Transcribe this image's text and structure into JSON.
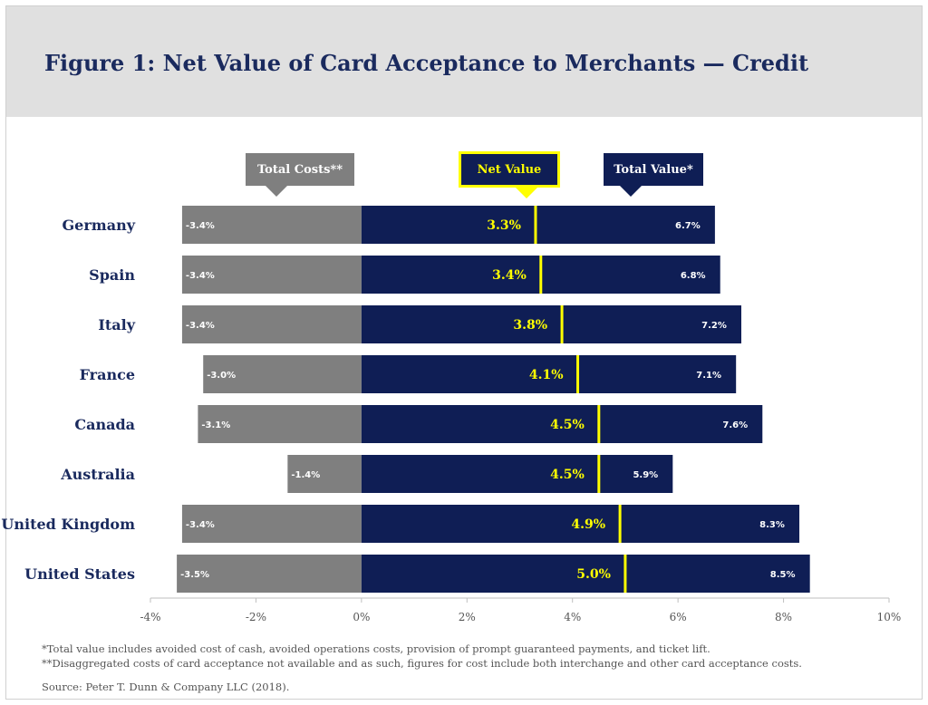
{
  "header": {
    "title": "Figure 1: Net Value of Card Acceptance to Merchants — Credit"
  },
  "legend": {
    "total_costs": "Total Costs**",
    "net_value": "Net Value",
    "total_value": "Total Value*"
  },
  "footnotes": {
    "note1": "*Total value includes avoided cost of cash, avoided operations  costs, provision of prompt guaranteed  payments,  and ticket lift.",
    "note2": "**Disaggregated  costs of card  acceptance  not available and as such, figures for cost include both  interchange  and other card acceptance  costs.",
    "source": "Source:  Peter  T. Dunn & Company LLC (2018)."
  },
  "colors": {
    "cost": "#7f7f7f",
    "value": "#0f1e55",
    "net": "#ffff00",
    "label_country": "#1a2a5e",
    "title": "#1a2a5e"
  },
  "chart_data": {
    "type": "bar",
    "orientation": "horizontal",
    "title": "Figure 1: Net Value of Card Acceptance to Merchants — Credit",
    "categories": [
      "Germany",
      "Spain",
      "Italy",
      "France",
      "Canada",
      "Australia",
      "United Kingdom",
      "United States"
    ],
    "series": [
      {
        "name": "Total Costs**",
        "values": [
          -3.4,
          -3.4,
          -3.4,
          -3.0,
          -3.1,
          -1.4,
          -3.4,
          -3.5
        ],
        "labels": [
          "-3.4%",
          "-3.4%",
          "-3.4%",
          "-3.0%",
          "-3.1%",
          "-1.4%",
          "-3.4%",
          "-3.5%"
        ]
      },
      {
        "name": "Total Value*",
        "values": [
          6.7,
          6.8,
          7.2,
          7.1,
          7.6,
          5.9,
          8.3,
          8.5
        ],
        "labels": [
          "6.7%",
          "6.8%",
          "7.2%",
          "7.1%",
          "7.6%",
          "5.9%",
          "8.3%",
          "8.5%"
        ]
      },
      {
        "name": "Net Value",
        "values": [
          3.3,
          3.4,
          3.8,
          4.1,
          4.5,
          4.5,
          4.9,
          5.0
        ],
        "labels": [
          "3.3%",
          "3.4%",
          "3.8%",
          "4.1%",
          "4.5%",
          "4.5%",
          "4.9%",
          "5.0%"
        ]
      }
    ],
    "xlim": [
      -4,
      10
    ],
    "xticks": [
      -4,
      -2,
      0,
      2,
      4,
      6,
      8,
      10
    ],
    "xtick_labels": [
      "-4%",
      "-2%",
      "0%",
      "2%",
      "4%",
      "6%",
      "8%",
      "10%"
    ],
    "legend_position": "top"
  }
}
